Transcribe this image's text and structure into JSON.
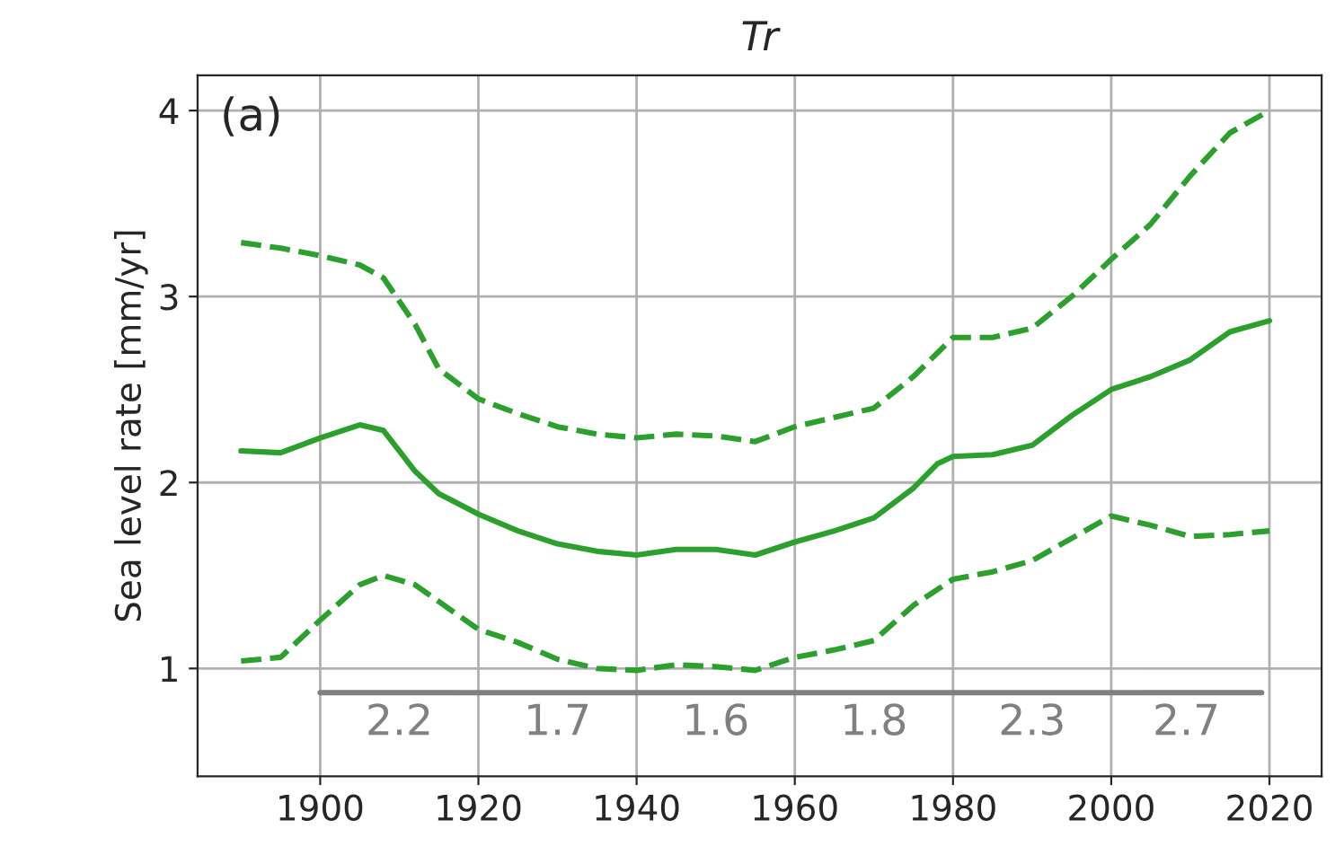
{
  "chart_data": {
    "type": "line",
    "title": "Tr",
    "ylabel": "Sea level rate [mm/yr]",
    "xlim": [
      1884.5,
      2026.6
    ],
    "ylim": [
      0.42,
      4.19
    ],
    "xticks": [
      1900,
      1920,
      1940,
      1960,
      1980,
      2000,
      2020
    ],
    "yticks": [
      1,
      2,
      3,
      4
    ],
    "grid": true,
    "series": [
      {
        "color": "#2ca02c",
        "line_style": "solid",
        "x": [
          1890,
          1895,
          1900,
          1905,
          1908,
          1912,
          1915,
          1920,
          1925,
          1930,
          1935,
          1940,
          1945,
          1950,
          1955,
          1960,
          1965,
          1970,
          1975,
          1978,
          1980,
          1985,
          1990,
          1995,
          2000,
          2005,
          2010,
          2015,
          2020
        ],
        "values": [
          2.17,
          2.16,
          2.24,
          2.31,
          2.28,
          2.06,
          1.94,
          1.83,
          1.74,
          1.67,
          1.63,
          1.61,
          1.64,
          1.64,
          1.61,
          1.68,
          1.74,
          1.81,
          1.97,
          2.1,
          2.14,
          2.15,
          2.2,
          2.36,
          2.5,
          2.57,
          2.66,
          2.81,
          2.87
        ]
      },
      {
        "color": "#2ca02c",
        "line_style": "dashed",
        "x": [
          1890,
          1895,
          1900,
          1905,
          1908,
          1912,
          1915,
          1920,
          1925,
          1930,
          1935,
          1940,
          1945,
          1950,
          1955,
          1960,
          1965,
          1970,
          1975,
          1980,
          1985,
          1990,
          1995,
          2000,
          2005,
          2010,
          2015,
          2020
        ],
        "values": [
          3.29,
          3.26,
          3.22,
          3.17,
          3.1,
          2.85,
          2.61,
          2.45,
          2.37,
          2.3,
          2.26,
          2.24,
          2.26,
          2.25,
          2.22,
          2.3,
          2.35,
          2.4,
          2.57,
          2.78,
          2.78,
          2.83,
          3.0,
          3.2,
          3.39,
          3.65,
          3.88,
          4.0
        ]
      },
      {
        "color": "#2ca02c",
        "line_style": "dashed",
        "x": [
          1890,
          1895,
          1900,
          1905,
          1908,
          1912,
          1915,
          1920,
          1925,
          1930,
          1935,
          1940,
          1945,
          1950,
          1955,
          1960,
          1965,
          1970,
          1975,
          1980,
          1985,
          1990,
          1995,
          2000,
          2005,
          2010,
          2015,
          2020
        ],
        "values": [
          1.04,
          1.06,
          1.26,
          1.45,
          1.5,
          1.45,
          1.36,
          1.21,
          1.14,
          1.05,
          1.0,
          0.99,
          1.02,
          1.01,
          0.99,
          1.06,
          1.1,
          1.15,
          1.34,
          1.48,
          1.52,
          1.58,
          1.7,
          1.82,
          1.77,
          1.71,
          1.72,
          1.74
        ]
      },
      {
        "color": "#808080",
        "line_style": "solid",
        "x": [
          1900,
          1920,
          1940,
          1960,
          1980,
          2000,
          2019
        ],
        "values": [
          0.87,
          0.87,
          0.87,
          0.87,
          0.87,
          0.87,
          0.87
        ]
      }
    ],
    "annotations": [
      {
        "text": "(a)"
      },
      "2.2",
      "1.7",
      "1.6",
      "1.8",
      "2.3",
      "2.7"
    ]
  }
}
